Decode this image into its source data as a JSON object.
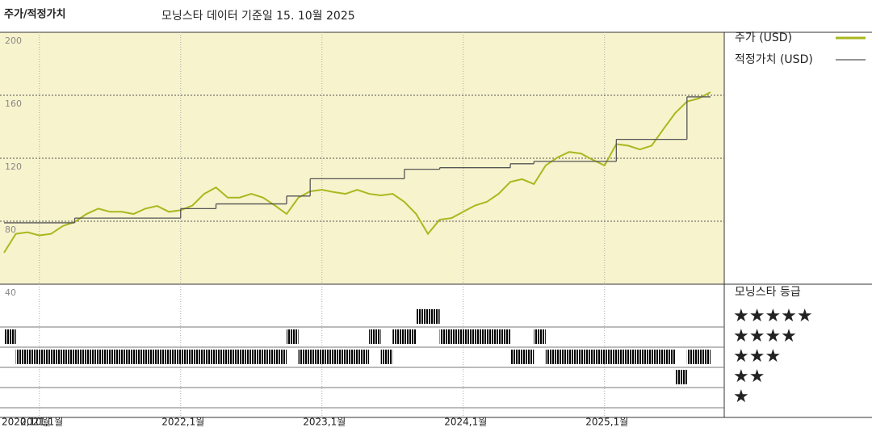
{
  "chart_data": {
    "type": "line",
    "title": "주가/적정가치",
    "subtitle": "모닝스타 데이터 기준일 15. 10월 2025",
    "xlim": [
      "2020-10",
      "2025-10"
    ],
    "xticks": [
      {
        "value": "2020-10",
        "label": "2020,10월"
      },
      {
        "value": "2021-01",
        "label": "2021,1월"
      },
      {
        "value": "2022-01",
        "label": "2022,1월"
      },
      {
        "value": "2023-01",
        "label": "2023,1월"
      },
      {
        "value": "2024-01",
        "label": "2024,1월"
      },
      {
        "value": "2025-01",
        "label": "2025,1월"
      }
    ],
    "ylim": [
      40,
      200
    ],
    "yticks": [
      40,
      80,
      120,
      160,
      200
    ],
    "grid": true,
    "series": [
      {
        "name": "주가 (USD)",
        "color": "#a9b81e",
        "x": [
          "2020-10",
          "2020-11",
          "2020-12",
          "2021-01",
          "2021-02",
          "2021-03",
          "2021-04",
          "2021-05",
          "2021-06",
          "2021-07",
          "2021-08",
          "2021-09",
          "2021-10",
          "2021-11",
          "2021-12",
          "2022-01",
          "2022-02",
          "2022-03",
          "2022-04",
          "2022-05",
          "2022-06",
          "2022-07",
          "2022-08",
          "2022-09",
          "2022-10",
          "2022-11",
          "2022-12",
          "2023-01",
          "2023-02",
          "2023-03",
          "2023-04",
          "2023-05",
          "2023-06",
          "2023-07",
          "2023-08",
          "2023-09",
          "2023-10",
          "2023-11",
          "2023-12",
          "2024-01",
          "2024-02",
          "2024-03",
          "2024-04",
          "2024-05",
          "2024-06",
          "2024-07",
          "2024-08",
          "2024-09",
          "2024-10",
          "2024-11",
          "2024-12",
          "2025-01",
          "2025-02",
          "2025-03",
          "2025-04",
          "2025-05",
          "2025-06",
          "2025-07",
          "2025-08",
          "2025-09",
          "2025-10"
        ],
        "values": [
          60,
          72,
          73,
          71,
          72,
          77,
          79.5,
          84.6,
          88,
          86,
          86,
          84.6,
          88,
          89.7,
          86,
          87,
          90,
          97.4,
          101.5,
          95,
          95,
          97.4,
          95,
          90,
          84.6,
          95,
          99,
          100,
          98.5,
          97.4,
          100,
          97.4,
          96.4,
          97.4,
          92.3,
          84.6,
          72,
          81,
          82,
          86,
          90,
          92.3,
          97.4,
          105,
          106.7,
          103.6,
          115.4,
          120.5,
          124,
          123,
          119,
          115.4,
          129,
          128,
          125.6,
          128,
          138.5,
          148.7,
          156,
          158,
          162
        ]
      },
      {
        "name": "적정가치 (USD)",
        "color": "#555555",
        "step": true,
        "x": [
          "2020-10",
          "2021-04",
          "2022-01",
          "2022-04",
          "2022-10",
          "2022-12",
          "2023-08",
          "2023-11",
          "2024-05",
          "2024-07",
          "2025-02",
          "2025-08"
        ],
        "values": [
          79,
          82,
          88,
          91,
          96,
          107,
          113,
          114,
          116.5,
          118,
          132,
          159
        ]
      }
    ],
    "rating_title": "모닝스타 등급",
    "rating_ticks": [
      {
        "value": 5,
        "label": "★★★★★"
      },
      {
        "value": 4,
        "label": "★★★★"
      },
      {
        "value": 3,
        "label": "★★★"
      },
      {
        "value": 2,
        "label": "★★"
      },
      {
        "value": 1,
        "label": "★"
      }
    ],
    "rating_color": "#222222",
    "top_rating_color": "#3d8f6e",
    "ratings": [
      {
        "value": 4,
        "start": "2020-10",
        "end": "2020-11"
      },
      {
        "value": 3,
        "start": "2020-11",
        "end": "2022-10"
      },
      {
        "value": 4,
        "start": "2022-10",
        "end": "2022-11"
      },
      {
        "value": 3,
        "start": "2022-11",
        "end": "2023-05"
      },
      {
        "value": 4,
        "start": "2023-05",
        "end": "2023-06"
      },
      {
        "value": 3,
        "start": "2023-06",
        "end": "2023-07"
      },
      {
        "value": 4,
        "start": "2023-07",
        "end": "2023-09"
      },
      {
        "value": 5,
        "start": "2023-09",
        "end": "2023-11"
      },
      {
        "value": 4,
        "start": "2023-11",
        "end": "2024-05"
      },
      {
        "value": 3,
        "start": "2024-05",
        "end": "2024-07"
      },
      {
        "value": 4,
        "start": "2024-07",
        "end": "2024-08"
      },
      {
        "value": 3,
        "start": "2024-08",
        "end": "2025-07"
      },
      {
        "value": 2,
        "start": "2025-07",
        "end": "2025-08"
      },
      {
        "value": 3,
        "start": "2025-08",
        "end": "2025-10"
      }
    ]
  }
}
